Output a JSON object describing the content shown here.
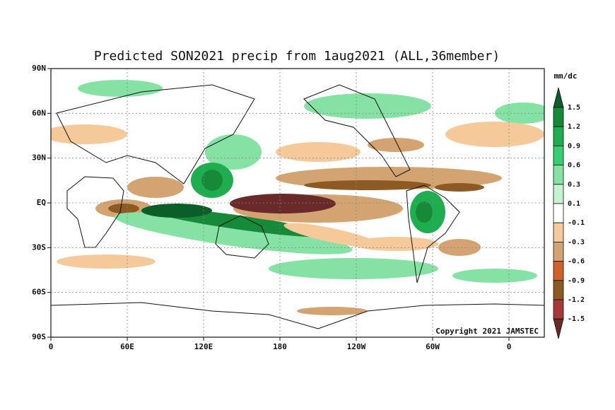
{
  "title": "Predicted SON2021 precip from 1aug2021 (ALL,36member)",
  "lat_labels": [
    "90N",
    "60N",
    "30N",
    "EQ",
    "30S",
    "60S",
    "90S"
  ],
  "lon_labels": [
    "0",
    "60E",
    "120E",
    "180",
    "120W",
    "60W",
    "0"
  ],
  "copyright": "Copyright 2021 JAMSTEC",
  "colorbar": {
    "unit": "mm/dc",
    "levels": [
      1.5,
      1.2,
      0.9,
      0.6,
      0.3,
      0.1,
      -0.1,
      -0.3,
      -0.6,
      -0.9,
      -1.2,
      -1.5
    ],
    "colors": [
      "#0b5e28",
      "#178a3a",
      "#1fae4f",
      "#35cf72",
      "#86e2a4",
      "#c6f2cf",
      "#ffffff",
      "#f6c99a",
      "#d3a472",
      "#d0612a",
      "#8c5a22",
      "#a8393a",
      "#6b2a2a"
    ]
  }
}
